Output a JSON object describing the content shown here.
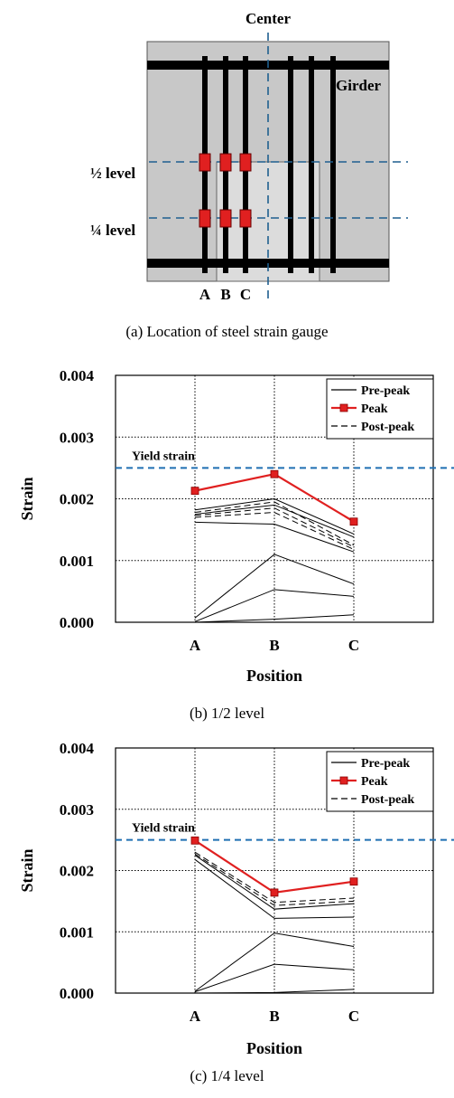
{
  "figure_a": {
    "center_label": "Center",
    "girder_label": "Girder",
    "level_half_label": "½ level",
    "level_quarter_label": "¼ level",
    "gauge_labels": [
      "A",
      "B",
      "C"
    ],
    "caption": "(a) Location of steel strain gauge",
    "colors": {
      "plate": "#c8c8c8",
      "patch": "#dcdcdc",
      "bar": "#000000",
      "gauge": "#e02020",
      "dash": "#1f5f8f"
    }
  },
  "chart_data": [
    {
      "type": "line",
      "caption": "(b) 1/2 level",
      "xlabel": "Position",
      "ylabel": "Strain",
      "categories": [
        "A",
        "B",
        "C"
      ],
      "yticks": [
        "0.000",
        "0.001",
        "0.002",
        "0.003",
        "0.004"
      ],
      "ylim": [
        0,
        0.004
      ],
      "grid": true,
      "legend_position": "top-right",
      "legend": [
        "Pre-peak",
        "Peak",
        "Post-peak"
      ],
      "yield_strain": {
        "label": "Yield strain",
        "value": 0.0025,
        "color": "#1f6fb2"
      },
      "series": [
        {
          "name": "Pre-peak",
          "style": "solid",
          "color": "#000000",
          "values": [
            0.0,
            5e-05,
            0.00012
          ]
        },
        {
          "name": "Pre-peak",
          "style": "solid",
          "color": "#000000",
          "values": [
            1e-05,
            0.00053,
            0.00042
          ]
        },
        {
          "name": "Pre-peak",
          "style": "solid",
          "color": "#000000",
          "values": [
            7e-05,
            0.0011,
            0.00062
          ]
        },
        {
          "name": "Pre-peak",
          "style": "solid",
          "color": "#000000",
          "values": [
            0.00162,
            0.00159,
            0.00114
          ]
        },
        {
          "name": "Pre-peak",
          "style": "solid",
          "color": "#000000",
          "values": [
            0.00175,
            0.0019,
            0.00138
          ]
        },
        {
          "name": "Pre-peak",
          "style": "solid",
          "color": "#000000",
          "values": [
            0.00182,
            0.002,
            0.00143
          ]
        },
        {
          "name": "Peak",
          "style": "marker",
          "color": "#e02020",
          "values": [
            0.00213,
            0.0024,
            0.00163
          ]
        },
        {
          "name": "Post-peak",
          "style": "dashed",
          "color": "#000000",
          "values": [
            0.00178,
            0.00195,
            0.00125
          ]
        },
        {
          "name": "Post-peak",
          "style": "dashed",
          "color": "#000000",
          "values": [
            0.00173,
            0.00185,
            0.00122
          ]
        },
        {
          "name": "Post-peak",
          "style": "dashed",
          "color": "#000000",
          "values": [
            0.0017,
            0.00178,
            0.00118
          ]
        }
      ]
    },
    {
      "type": "line",
      "caption": "(c) 1/4 level",
      "xlabel": "Position",
      "ylabel": "Strain",
      "categories": [
        "A",
        "B",
        "C"
      ],
      "yticks": [
        "0.000",
        "0.001",
        "0.002",
        "0.003",
        "0.004"
      ],
      "ylim": [
        0,
        0.004
      ],
      "grid": true,
      "legend_position": "top-right",
      "legend": [
        "Pre-peak",
        "Peak",
        "Post-peak"
      ],
      "yield_strain": {
        "label": "Yield strain",
        "value": 0.0025,
        "color": "#1f6fb2"
      },
      "series": [
        {
          "name": "Pre-peak",
          "style": "solid",
          "color": "#000000",
          "values": [
            0.0,
            1e-05,
            6e-05
          ]
        },
        {
          "name": "Pre-peak",
          "style": "solid",
          "color": "#000000",
          "values": [
            2e-05,
            0.00047,
            0.00038
          ]
        },
        {
          "name": "Pre-peak",
          "style": "solid",
          "color": "#000000",
          "values": [
            3e-05,
            0.00098,
            0.00076
          ]
        },
        {
          "name": "Pre-peak",
          "style": "solid",
          "color": "#000000",
          "values": [
            0.00218,
            0.00122,
            0.00124
          ]
        },
        {
          "name": "Pre-peak",
          "style": "solid",
          "color": "#000000",
          "values": [
            0.00225,
            0.00137,
            0.00146
          ]
        },
        {
          "name": "Peak",
          "style": "marker",
          "color": "#e02020",
          "values": [
            0.00249,
            0.00164,
            0.00182
          ]
        },
        {
          "name": "Post-peak",
          "style": "dashed",
          "color": "#000000",
          "values": [
            0.0023,
            0.00148,
            0.00155
          ]
        },
        {
          "name": "Post-peak",
          "style": "dashed",
          "color": "#000000",
          "values": [
            0.00227,
            0.00143,
            0.0015
          ]
        }
      ]
    }
  ]
}
